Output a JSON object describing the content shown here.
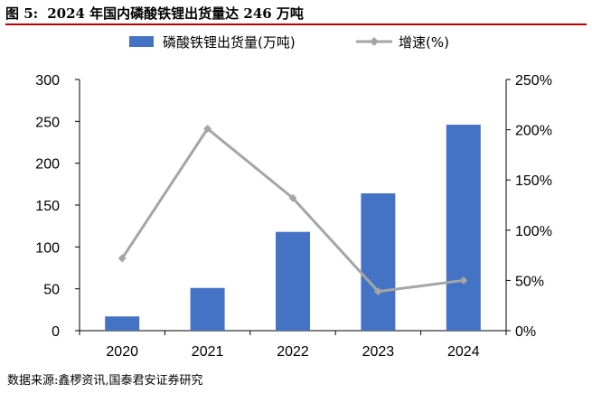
{
  "figure": {
    "label": "图 5:",
    "title": "2024 年国内磷酸铁锂出货量达 246 万吨"
  },
  "source": {
    "label": "数据来源:",
    "text": "鑫椤资讯,国泰君安证券研究"
  },
  "chart_data": {
    "type": "bar",
    "categories": [
      "2020",
      "2021",
      "2022",
      "2023",
      "2024"
    ],
    "series": [
      {
        "name": "磷酸铁锂出货量(万吨)",
        "type": "bar",
        "axis": "left",
        "color": "#4472c4",
        "values": [
          17,
          51,
          118,
          164,
          246
        ]
      },
      {
        "name": "增速(%)",
        "type": "line",
        "axis": "right",
        "color": "#a5a5a5",
        "values": [
          72,
          201,
          132,
          39,
          50
        ]
      }
    ],
    "y_left": {
      "min": 0,
      "max": 300,
      "ticks": [
        "0",
        "50",
        "100",
        "150",
        "200",
        "250",
        "300"
      ]
    },
    "y_right": {
      "min": 0,
      "max": 250,
      "ticks": [
        "0%",
        "50%",
        "100%",
        "150%",
        "200%",
        "250%"
      ]
    },
    "grid": false,
    "legend_position": "top"
  }
}
